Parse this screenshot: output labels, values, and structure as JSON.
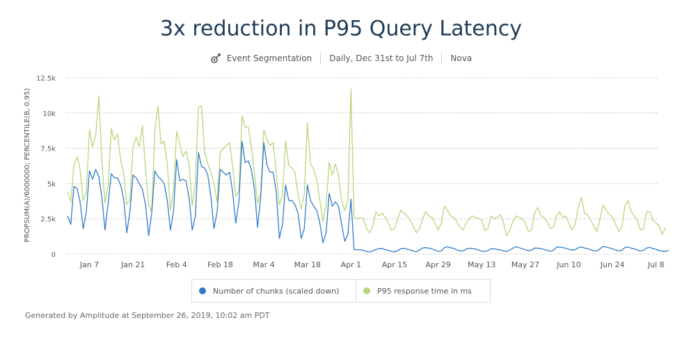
{
  "header": {
    "title": "3x reduction in P95 Query Latency",
    "analysis_type": "Event Segmentation",
    "date_range": "Daily, Dec 31st to Jul 7th",
    "project": "Nova"
  },
  "colors": {
    "series1": "#2f7bc9",
    "series2": "#b7d67a",
    "grid": "#c8c8c8"
  },
  "chart_data": {
    "type": "line",
    "title": "3x reduction in P95 Query Latency",
    "ylabel": "PROPSUM(A)/6000000; PERCENTILE(B, 0.95)",
    "xlabel": "",
    "ylim": [
      0,
      12500
    ],
    "yticks": [
      0,
      2500,
      5000,
      7500,
      10000,
      12500
    ],
    "ytick_labels": [
      "0",
      "2.5k",
      "5k",
      "7.5k",
      "10k",
      "12.5k"
    ],
    "xtick_labels": [
      "Jan 7",
      "Jan 21",
      "Feb 4",
      "Feb 18",
      "Mar 4",
      "Mar 18",
      "Apr 1",
      "Apr 15",
      "Apr 29",
      "May 13",
      "May 27",
      "Jun 10",
      "Jun 24",
      "Jul 8"
    ],
    "xtick_day_index": [
      7,
      21,
      35,
      49,
      63,
      77,
      91,
      105,
      119,
      133,
      147,
      161,
      175,
      189
    ],
    "x_start": "Dec 31",
    "num_days": 190,
    "series": [
      {
        "name": "Number of chunks (scaled down)",
        "values": [
          2700,
          2100,
          4800,
          4650,
          3700,
          1800,
          3000,
          5900,
          5300,
          6000,
          5500,
          4000,
          1700,
          3600,
          5700,
          5400,
          5400,
          4900,
          3900,
          1500,
          3000,
          5600,
          5400,
          5000,
          4600,
          3500,
          1300,
          2900,
          5900,
          5500,
          5300,
          5000,
          3800,
          1700,
          3000,
          6700,
          5200,
          5300,
          5200,
          4000,
          1700,
          2700,
          7200,
          6200,
          6100,
          5600,
          4100,
          1800,
          3000,
          6000,
          5800,
          5600,
          5800,
          4400,
          2200,
          3700,
          8000,
          6500,
          6600,
          6000,
          4600,
          1900,
          4000,
          7900,
          6300,
          5800,
          5800,
          4400,
          1100,
          2100,
          4900,
          3800,
          3800,
          3500,
          2900,
          1100,
          1800,
          4900,
          3800,
          3400,
          3100,
          2200,
          800,
          1500,
          4300,
          3400,
          3700,
          3400,
          2100,
          900,
          1400,
          3900,
          300,
          320,
          300,
          250,
          180,
          150,
          220,
          320,
          380,
          400,
          320,
          260,
          190,
          150,
          240,
          380,
          400,
          350,
          300,
          220,
          160,
          280,
          430,
          460,
          420,
          370,
          280,
          190,
          220,
          460,
          520,
          450,
          400,
          300,
          230,
          220,
          350,
          420,
          390,
          360,
          290,
          210,
          170,
          240,
          380,
          370,
          330,
          300,
          220,
          180,
          280,
          420,
          520,
          460,
          380,
          300,
          230,
          280,
          430,
          420,
          390,
          330,
          260,
          200,
          250,
          480,
          500,
          460,
          420,
          330,
          280,
          310,
          450,
          500,
          430,
          380,
          300,
          230,
          220,
          380,
          540,
          490,
          440,
          380,
          290,
          220,
          260,
          470,
          500,
          420,
          370,
          280,
          220,
          270,
          440,
          470,
          390,
          340,
          240,
          210,
          180,
          260
        ]
      },
      {
        "name": "P95 response time in ms",
        "values": [
          4400,
          3700,
          6300,
          6900,
          6000,
          3800,
          4400,
          8800,
          7600,
          8400,
          11200,
          6600,
          3600,
          4900,
          8900,
          8100,
          8500,
          6700,
          5700,
          3500,
          3800,
          7600,
          8300,
          7600,
          9100,
          6000,
          3500,
          3000,
          8800,
          10500,
          7800,
          8000,
          6400,
          3100,
          4500,
          8700,
          7800,
          6900,
          7300,
          6400,
          3400,
          5100,
          10400,
          10500,
          7200,
          6400,
          5800,
          5000,
          3700,
          7200,
          7500,
          7700,
          7900,
          6200,
          4100,
          4500,
          9800,
          9000,
          9000,
          7600,
          5700,
          3600,
          4300,
          8800,
          8100,
          7700,
          7900,
          5800,
          3500,
          4200,
          8000,
          6300,
          6100,
          5800,
          4200,
          3200,
          4200,
          9300,
          6400,
          6000,
          5300,
          3800,
          2300,
          3500,
          6500,
          5600,
          6400,
          5600,
          3800,
          3100,
          3800,
          11700,
          2600,
          2500,
          2600,
          2500,
          1800,
          1500,
          2000,
          3000,
          2700,
          2900,
          2600,
          2200,
          1700,
          1800,
          2500,
          3100,
          2900,
          2700,
          2400,
          2000,
          1500,
          1800,
          2500,
          3000,
          2700,
          2600,
          2200,
          1700,
          2200,
          3400,
          3100,
          2700,
          2600,
          2300,
          1900,
          1700,
          2200,
          2500,
          2700,
          2600,
          2500,
          2400,
          1700,
          1800,
          2700,
          2500,
          2600,
          2800,
          2200,
          1300,
          1700,
          2300,
          2700,
          2600,
          2500,
          2200,
          1600,
          1700,
          2900,
          3300,
          2700,
          2600,
          2300,
          1800,
          1900,
          2700,
          3000,
          2600,
          2700,
          2200,
          1700,
          2100,
          3300,
          4000,
          2900,
          2800,
          2400,
          2000,
          1600,
          2500,
          3500,
          3100,
          2800,
          2600,
          2100,
          1600,
          1900,
          3400,
          3800,
          3000,
          2700,
          2400,
          1700,
          1800,
          3000,
          3000,
          2400,
          2200,
          2000,
          1400,
          1900
        ]
      }
    ],
    "legend_position": "bottom-center"
  },
  "footer": {
    "text": "Generated by Amplitude at September 26, 2019, 10:02 am PDT"
  }
}
